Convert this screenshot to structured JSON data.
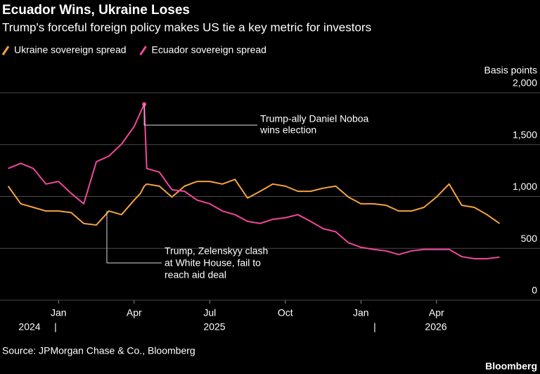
{
  "chart_data": {
    "type": "line",
    "title": "Ecuador Wins, Ukraine Loses",
    "subtitle": "Trump's forceful foreign policy makes US tie a key metric for investors",
    "y_label": "Basis points",
    "source": "Source: JPMorgan Chase & Co., Bloomberg",
    "brand": "Bloomberg",
    "x": [
      -2,
      -1.5,
      -1,
      -0.5,
      0,
      0.5,
      1,
      1.5,
      2,
      2.5,
      3,
      3.25,
      3.4,
      3.5,
      4,
      4.5,
      5,
      5.5,
      6,
      6.5,
      7,
      7.5,
      8,
      8.5,
      9,
      9.5,
      10,
      10.5,
      11,
      11.5,
      12,
      12.5,
      13,
      13.5,
      14,
      14.5,
      15,
      15.5,
      16,
      16.5,
      17,
      17.5
    ],
    "xlim": [
      -2.1,
      17.6
    ],
    "xticks": [
      {
        "value": 0,
        "label": "Jan"
      },
      {
        "value": 3,
        "label": "Apr"
      },
      {
        "value": 6,
        "label": "Jul"
      },
      {
        "value": 9,
        "label": "Oct"
      },
      {
        "value": 12,
        "label": "Jan"
      },
      {
        "value": 15,
        "label": "Apr"
      }
    ],
    "years": [
      "2024",
      "2025",
      "2026"
    ],
    "ylim": [
      0,
      2000
    ],
    "yticks": [
      0,
      500,
      {
        "value": 1000,
        "label": "1,000"
      },
      {
        "value": 1500,
        "label": "1,500"
      },
      {
        "value": 2000,
        "label": "2,000"
      }
    ],
    "grid": true,
    "series": [
      {
        "name": "Ukraine sovereign spread",
        "color": "#f5a340",
        "values": [
          1100,
          930,
          895,
          860,
          860,
          845,
          740,
          725,
          860,
          825,
          965,
          1030,
          1100,
          1120,
          1100,
          995,
          1100,
          1145,
          1145,
          1120,
          1165,
          985,
          1050,
          1120,
          1100,
          1050,
          1050,
          1080,
          1100,
          995,
          930,
          930,
          915,
          860,
          860,
          895,
          995,
          1120,
          915,
          895,
          825,
          740
        ]
      },
      {
        "name": "Ecuador sovereign spread",
        "color": "#f0479b",
        "values": [
          1270,
          1320,
          1270,
          1120,
          1145,
          1030,
          930,
          1335,
          1390,
          1505,
          1675,
          1810,
          1890,
          1270,
          1235,
          1065,
          1050,
          965,
          930,
          860,
          825,
          760,
          740,
          780,
          795,
          825,
          760,
          690,
          660,
          555,
          510,
          490,
          475,
          440,
          475,
          490,
          490,
          490,
          420,
          400,
          400,
          415
        ]
      }
    ],
    "annotations": [
      {
        "lines": [
          "Trump-ally Daniel Noboa",
          "wins election"
        ]
      },
      {
        "lines": [
          "Trump, Zelenskyy clash",
          "at White House, fail to",
          "reach aid deal"
        ]
      }
    ]
  }
}
